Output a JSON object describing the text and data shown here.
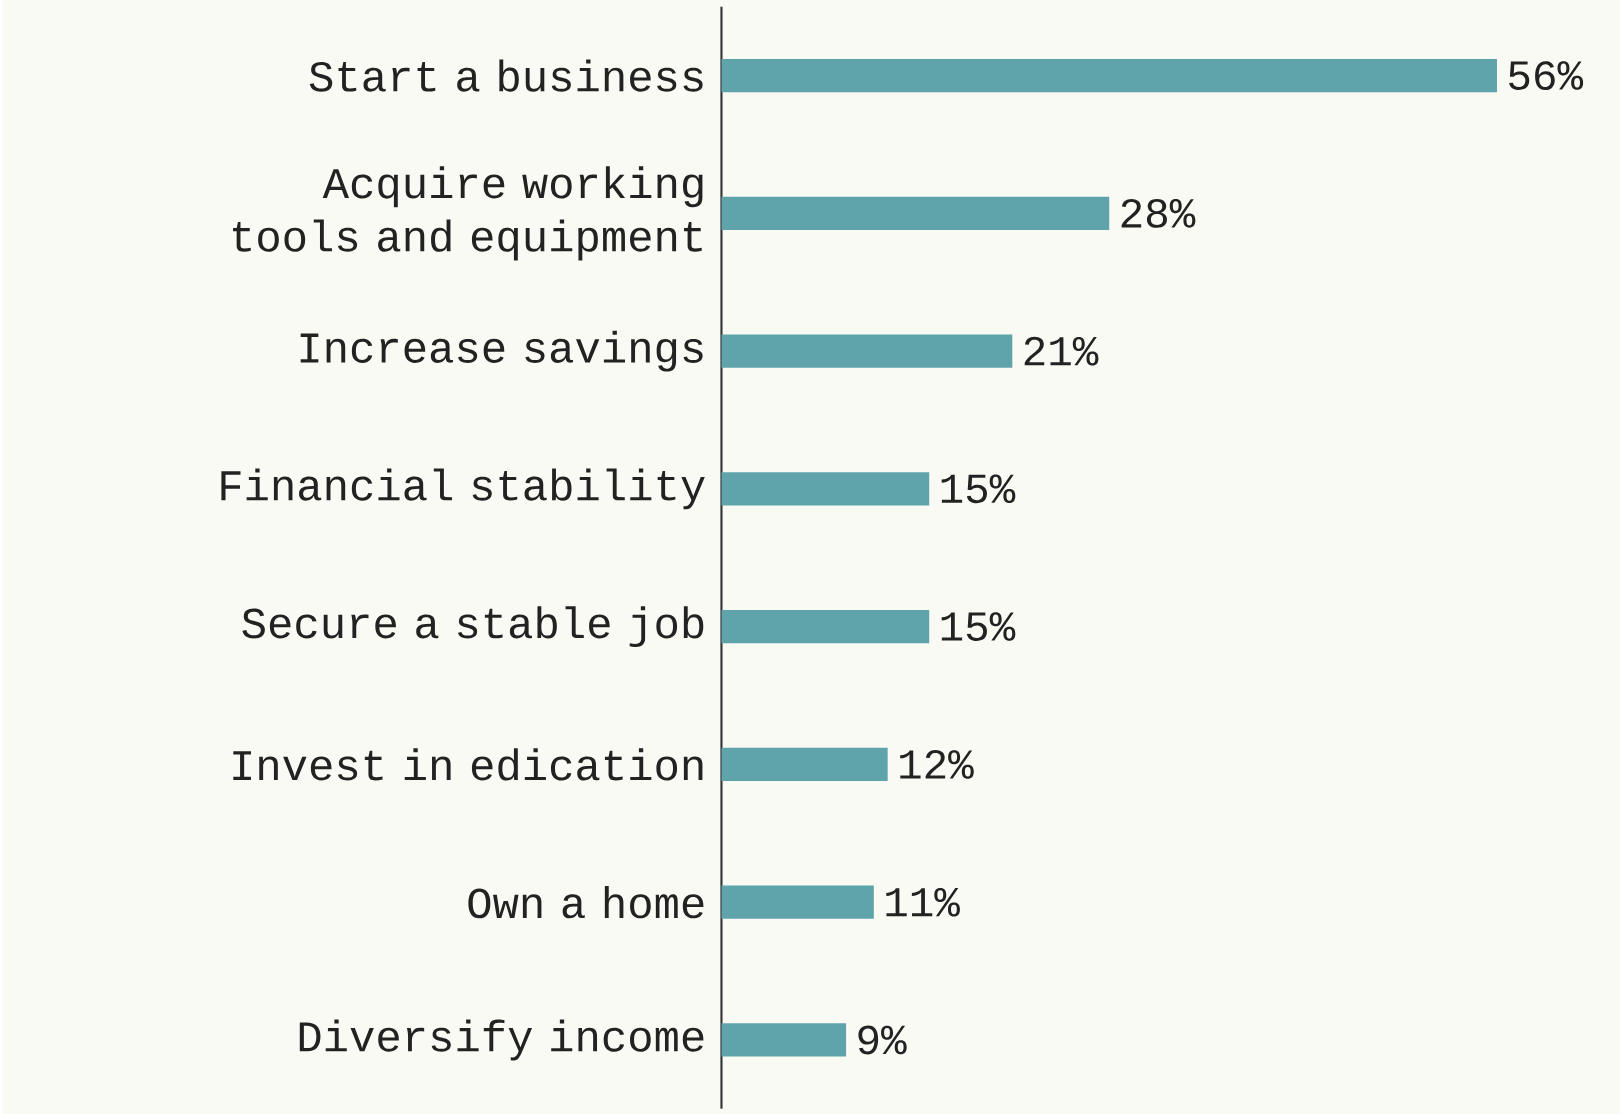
{
  "chart_data": {
    "type": "bar",
    "orientation": "horizontal",
    "categories": [
      "Start a business",
      "Acquire working tools and equipment",
      "Increase savings",
      "Financial stability",
      "Secure a stable job",
      "Invest in edication",
      "Own a home",
      "Diversify income"
    ],
    "values": [
      56,
      28,
      21,
      15,
      15,
      12,
      11,
      9
    ],
    "value_labels": [
      "56%",
      "28%",
      "21%",
      "15%",
      "15%",
      "12%",
      "11%",
      "9%"
    ],
    "color": "#5fa3ab"
  }
}
